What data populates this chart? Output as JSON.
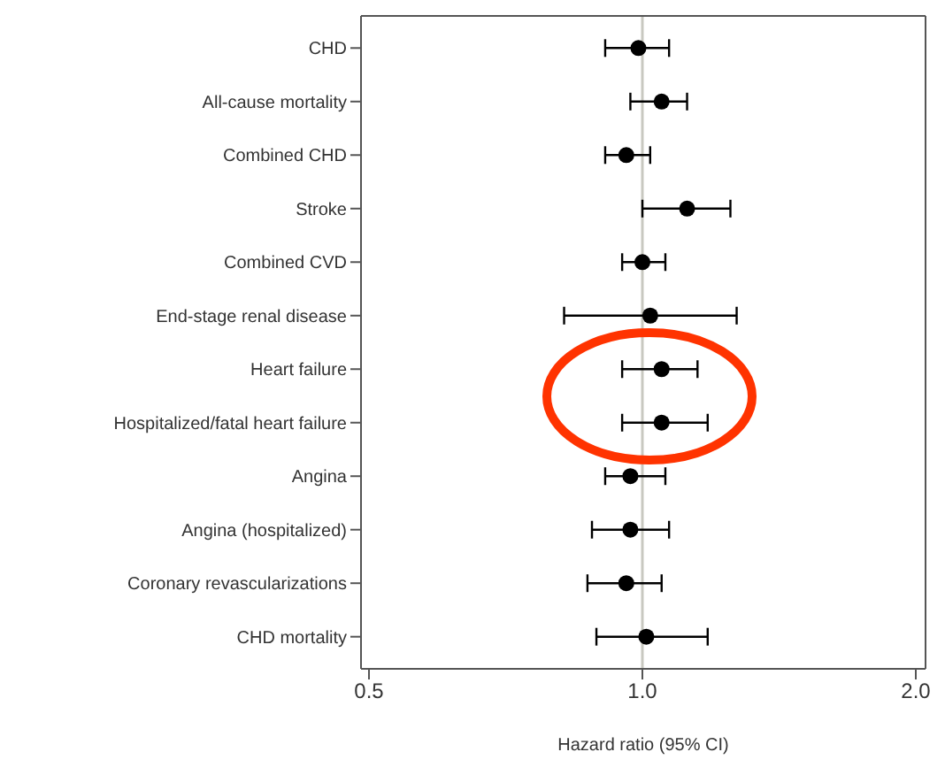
{
  "chart_data": {
    "type": "scatter",
    "orientation": "horizontal",
    "xlabel": "Hazard ratio (95% CI)",
    "categories": [
      "CHD",
      "All-cause mortality",
      "Combined CHD",
      "Stroke",
      "Combined CVD",
      "End-stage renal disease",
      "Heart failure",
      "Hospitalized/fatal heart failure",
      "Angina",
      "Angina (hospitalized)",
      "Coronary revascularizations",
      "CHD mortality"
    ],
    "values": [
      0.99,
      1.05,
      0.96,
      1.12,
      1.0,
      1.02,
      1.05,
      1.05,
      0.97,
      0.97,
      0.96,
      1.01
    ],
    "errors": [
      [
        0.91,
        1.07
      ],
      [
        0.97,
        1.12
      ],
      [
        0.91,
        1.02
      ],
      [
        1.0,
        1.25
      ],
      [
        0.95,
        1.06
      ],
      [
        0.82,
        1.27
      ],
      [
        0.95,
        1.15
      ],
      [
        0.95,
        1.18
      ],
      [
        0.91,
        1.06
      ],
      [
        0.88,
        1.07
      ],
      [
        0.87,
        1.05
      ],
      [
        0.89,
        1.18
      ]
    ],
    "color": "#000000",
    "marker": "circle",
    "log": "x",
    "xlim": [
      0.49,
      2.05
    ],
    "xticks": [
      0.5,
      {
        "value": 1,
        "label": "1.0"
      },
      {
        "value": 2,
        "label": "2.0"
      }
    ],
    "ref_lines": [
      {
        "axis": "x",
        "value": 1,
        "color": "#c8c8c0"
      }
    ],
    "grid": false,
    "legend": false
  }
}
